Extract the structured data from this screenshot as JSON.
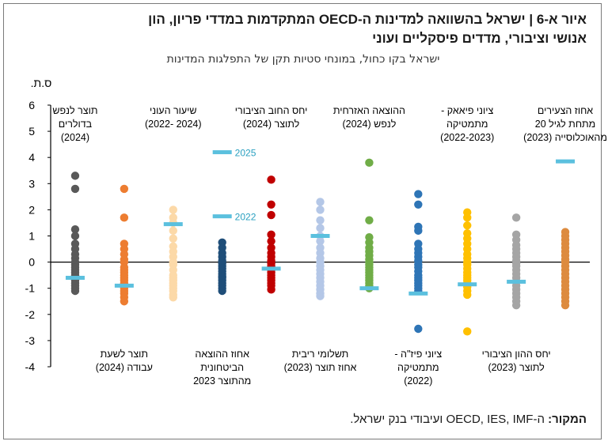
{
  "title_line1": "איור א-6 | ישראל בהשוואה למדינות ה-OECD המתקדמות במדדי פריון, הון",
  "title_line2": "אנושי וציבורי, מדדים פיסקליים ועוני",
  "subtitle": "ישראל בקו כחול, במונחי סטיות תקן של התפלגות המדינות",
  "source_label": "המקור:",
  "source_text": " ה-OECD, IES, IMF ועיבודי בנק ישראל.",
  "chart_data": {
    "type": "scatter",
    "y_unit": "ס.ת.",
    "ylim": [
      -4,
      6
    ],
    "yticks": [
      "-4",
      "-3",
      "-2",
      "-1",
      "0",
      "1",
      "2",
      "3",
      "4",
      "5",
      "6"
    ],
    "colors": [
      "#595959",
      "#ed7d31",
      "#fcd9a8",
      "#1f4e79",
      "#c00000",
      "#b4c7e7",
      "#70ad47",
      "#2e75b6",
      "#ffc000",
      "#a5a5a5",
      "#dd8b3f"
    ],
    "israel_color": "#5bc0de",
    "categories": [
      {
        "label": [
          "תוצר לנפש",
          "בדולרים",
          "(2024)"
        ],
        "pos": "top",
        "israel": -0.6,
        "values": [
          3.3,
          2.8,
          1.25,
          1.0,
          0.7,
          0.5,
          0.3,
          0.15,
          0.0,
          -0.1,
          -0.2,
          -0.3,
          -0.4,
          -0.5,
          -0.6,
          -0.7,
          -0.8,
          -0.9,
          -1.0,
          -1.1
        ]
      },
      {
        "label": [
          "תוצר לשעת",
          "עבודה (2024)"
        ],
        "pos": "bottom",
        "israel": -0.9,
        "values": [
          2.8,
          1.7,
          0.7,
          0.5,
          0.3,
          0.1,
          0.0,
          -0.2,
          -0.3,
          -0.4,
          -0.5,
          -0.6,
          -0.7,
          -0.8,
          -0.9,
          -1.0,
          -1.1,
          -1.2,
          -1.35,
          -1.5
        ]
      },
      {
        "label": [
          "שיעור העוני",
          "(2024 -2022)"
        ],
        "pos": "top",
        "israel": 1.45,
        "values": [
          2.0,
          1.7,
          1.5,
          1.2,
          0.9,
          0.6,
          0.4,
          0.2,
          0.0,
          -0.1,
          -0.3,
          -0.5,
          -0.6,
          -0.7,
          -0.8,
          -0.9,
          -1.0,
          -1.1,
          -1.25,
          -1.35
        ]
      },
      {
        "label": [
          "אחוז ההוצאה",
          "הביטחונית",
          "מהתוצר 2023"
        ],
        "pos": "bottom",
        "israel": 4.2,
        "israel2": 1.75,
        "note_israel": "2025",
        "note_israel2": "2022",
        "values": [
          0.75,
          0.55,
          0.35,
          0.2,
          0.05,
          -0.05,
          -0.15,
          -0.25,
          -0.35,
          -0.45,
          -0.55,
          -0.6,
          -0.7,
          -0.8,
          -0.9,
          -1.0,
          -1.1
        ]
      },
      {
        "label": [
          "יחס החוב הציבורי",
          "לתוצר (2024)"
        ],
        "pos": "top",
        "israel": -0.25,
        "values": [
          3.15,
          2.2,
          1.8,
          1.05,
          0.8,
          0.55,
          0.35,
          0.2,
          0.05,
          -0.05,
          -0.15,
          -0.3,
          -0.4,
          -0.5,
          -0.6,
          -0.7,
          -0.8,
          -0.9,
          -1.05
        ]
      },
      {
        "label": [
          "תשלומי ריבית",
          "אחוז תוצר (2023)"
        ],
        "pos": "bottom",
        "israel": 1.0,
        "values": [
          2.3,
          2.0,
          1.6,
          1.3,
          1.0,
          0.8,
          0.55,
          0.35,
          0.15,
          0.0,
          -0.15,
          -0.3,
          -0.45,
          -0.6,
          -0.75,
          -0.9,
          -1.05,
          -1.2,
          -1.3
        ]
      },
      {
        "label": [
          "ההוצאה האזרחית",
          "לנפש (2024)"
        ],
        "pos": "top",
        "israel": -1.0,
        "values": [
          3.8,
          1.6,
          0.95,
          0.75,
          0.55,
          0.4,
          0.25,
          0.1,
          0.0,
          -0.1,
          -0.2,
          -0.3,
          -0.4,
          -0.5,
          -0.6,
          -0.7,
          -0.8,
          -0.9,
          -1.0
        ]
      },
      {
        "label": [
          "ציוני פיז\"ה -",
          "מתמטיקה",
          "(2022)"
        ],
        "pos": "bottom",
        "israel": -1.2,
        "values": [
          2.6,
          2.2,
          1.35,
          1.2,
          0.7,
          0.5,
          0.35,
          0.2,
          0.05,
          -0.1,
          -0.2,
          -0.35,
          -0.5,
          -0.6,
          -0.7,
          -0.8,
          -0.9,
          -1.0,
          -1.1,
          -2.55
        ]
      },
      {
        "label": [
          "ציוני פיאאק -",
          "מתמטיקה",
          "(2022-2023)"
        ],
        "pos": "top",
        "israel": -0.85,
        "values": [
          1.9,
          1.7,
          1.4,
          1.1,
          0.9,
          0.7,
          0.5,
          0.3,
          0.15,
          0.0,
          -0.1,
          -0.25,
          -0.4,
          -0.5,
          -0.6,
          -0.7,
          -0.8,
          -0.95,
          -1.1,
          -1.25,
          -2.65
        ]
      },
      {
        "label": [
          "יחס ההון הציבורי",
          "לתוצר (2023)"
        ],
        "pos": "bottom",
        "israel": -0.75,
        "values": [
          1.7,
          1.05,
          0.85,
          0.65,
          0.5,
          0.35,
          0.2,
          0.05,
          -0.05,
          -0.15,
          -0.3,
          -0.45,
          -0.6,
          -0.75,
          -0.9,
          -1.05,
          -1.2,
          -1.35,
          -1.5,
          -1.65
        ]
      },
      {
        "label": [
          "אחוז הצעירים",
          "מתחת לגיל 20",
          "מהאוכלוסייה (2023)"
        ],
        "pos": "top",
        "israel": 3.85,
        "values": [
          1.15,
          1.0,
          0.85,
          0.7,
          0.55,
          0.4,
          0.25,
          0.1,
          0.0,
          -0.15,
          -0.3,
          -0.45,
          -0.6,
          -0.75,
          -0.9,
          -1.05,
          -1.2,
          -1.35,
          -1.5,
          -1.65
        ]
      }
    ]
  }
}
